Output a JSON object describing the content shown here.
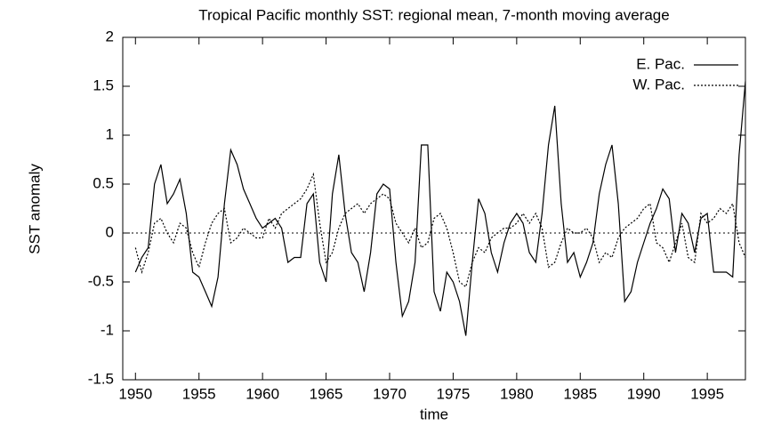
{
  "chart_data": {
    "type": "line",
    "title": "Tropical Pacific monthly SST: regional mean, 7-month moving average",
    "xlabel": "time",
    "ylabel": "SST anomaly",
    "x": [
      1950,
      1950.5,
      1951,
      1951.5,
      1952,
      1952.5,
      1953,
      1953.5,
      1954,
      1954.5,
      1955,
      1955.5,
      1956,
      1956.5,
      1957,
      1957.5,
      1958,
      1958.5,
      1959,
      1959.5,
      1960,
      1960.5,
      1961,
      1961.5,
      1962,
      1962.5,
      1963,
      1963.5,
      1964,
      1964.5,
      1965,
      1965.5,
      1966,
      1966.5,
      1967,
      1967.5,
      1968,
      1968.5,
      1969,
      1969.5,
      1970,
      1970.5,
      1971,
      1971.5,
      1972,
      1972.5,
      1973,
      1973.5,
      1974,
      1974.5,
      1975,
      1975.5,
      1976,
      1976.5,
      1977,
      1977.5,
      1978,
      1978.5,
      1979,
      1979.5,
      1980,
      1980.5,
      1981,
      1981.5,
      1982,
      1982.5,
      1983,
      1983.5,
      1984,
      1984.5,
      1985,
      1985.5,
      1986,
      1986.5,
      1987,
      1987.5,
      1988,
      1988.5,
      1989,
      1989.5,
      1990,
      1990.5,
      1991,
      1991.5,
      1992,
      1992.5,
      1993,
      1993.5,
      1994,
      1994.5,
      1995,
      1995.5,
      1996,
      1996.5,
      1997,
      1997.5,
      1998
    ],
    "series": [
      {
        "name": "E. Pac.",
        "color": "#000000",
        "style": "solid",
        "values": [
          -0.4,
          -0.25,
          -0.15,
          0.5,
          0.7,
          0.3,
          0.4,
          0.55,
          0.2,
          -0.4,
          -0.45,
          -0.6,
          -0.75,
          -0.45,
          0.3,
          0.85,
          0.7,
          0.45,
          0.3,
          0.15,
          0.05,
          0.1,
          0.15,
          0.05,
          -0.3,
          -0.25,
          -0.25,
          0.3,
          0.4,
          -0.3,
          -0.5,
          0.4,
          0.8,
          0.2,
          -0.2,
          -0.3,
          -0.6,
          -0.2,
          0.4,
          0.5,
          0.45,
          -0.3,
          -0.85,
          -0.7,
          -0.3,
          0.9,
          0.9,
          -0.6,
          -0.8,
          -0.4,
          -0.5,
          -0.7,
          -1.05,
          -0.3,
          0.35,
          0.2,
          -0.2,
          -0.4,
          -0.1,
          0.1,
          0.2,
          0.1,
          -0.2,
          -0.3,
          0.2,
          0.9,
          1.3,
          0.3,
          -0.3,
          -0.2,
          -0.45,
          -0.3,
          -0.1,
          0.4,
          0.7,
          0.9,
          0.3,
          -0.7,
          -0.6,
          -0.3,
          -0.1,
          0.1,
          0.25,
          0.45,
          0.35,
          -0.2,
          0.2,
          0.1,
          -0.2,
          0.15,
          0.2,
          -0.4,
          -0.4,
          -0.4,
          -0.45,
          0.8,
          1.55
        ]
      },
      {
        "name": "W. Pac.",
        "color": "#000000",
        "style": "dotted",
        "values": [
          -0.15,
          -0.4,
          -0.2,
          0.1,
          0.15,
          0,
          -0.1,
          0.1,
          0.05,
          -0.2,
          -0.35,
          -0.1,
          0.1,
          0.2,
          0.25,
          -0.1,
          -0.05,
          0.05,
          0,
          -0.05,
          -0.05,
          0.15,
          0.05,
          0.2,
          0.25,
          0.3,
          0.35,
          0.45,
          0.6,
          0.1,
          -0.3,
          -0.2,
          0.05,
          0.2,
          0.25,
          0.3,
          0.2,
          0.3,
          0.35,
          0.4,
          0.35,
          0.1,
          0,
          -0.1,
          0.05,
          -0.15,
          -0.1,
          0.15,
          0.2,
          0.05,
          -0.2,
          -0.5,
          -0.55,
          -0.3,
          -0.15,
          -0.2,
          -0.05,
          0,
          0.05,
          0.05,
          0.1,
          0.2,
          0.1,
          0.2,
          0.05,
          -0.35,
          -0.3,
          -0.1,
          0.05,
          0,
          0,
          0.05,
          -0.05,
          -0.3,
          -0.2,
          -0.25,
          -0.05,
          0.05,
          0.1,
          0.15,
          0.25,
          0.3,
          -0.1,
          -0.15,
          -0.3,
          -0.1,
          0.1,
          -0.25,
          -0.3,
          0.2,
          0.1,
          0.15,
          0.25,
          0.2,
          0.3,
          -0.1,
          -0.25
        ]
      }
    ],
    "xlim": [
      1949,
      1998
    ],
    "xticks": [
      1950,
      1955,
      1960,
      1965,
      1970,
      1975,
      1980,
      1985,
      1990,
      1995
    ],
    "ylim": [
      -1.5,
      2
    ],
    "yticks": [
      -1.5,
      -1,
      -0.5,
      0,
      0.5,
      1,
      1.5,
      2
    ],
    "zero_line": true,
    "legend": "upper right"
  }
}
